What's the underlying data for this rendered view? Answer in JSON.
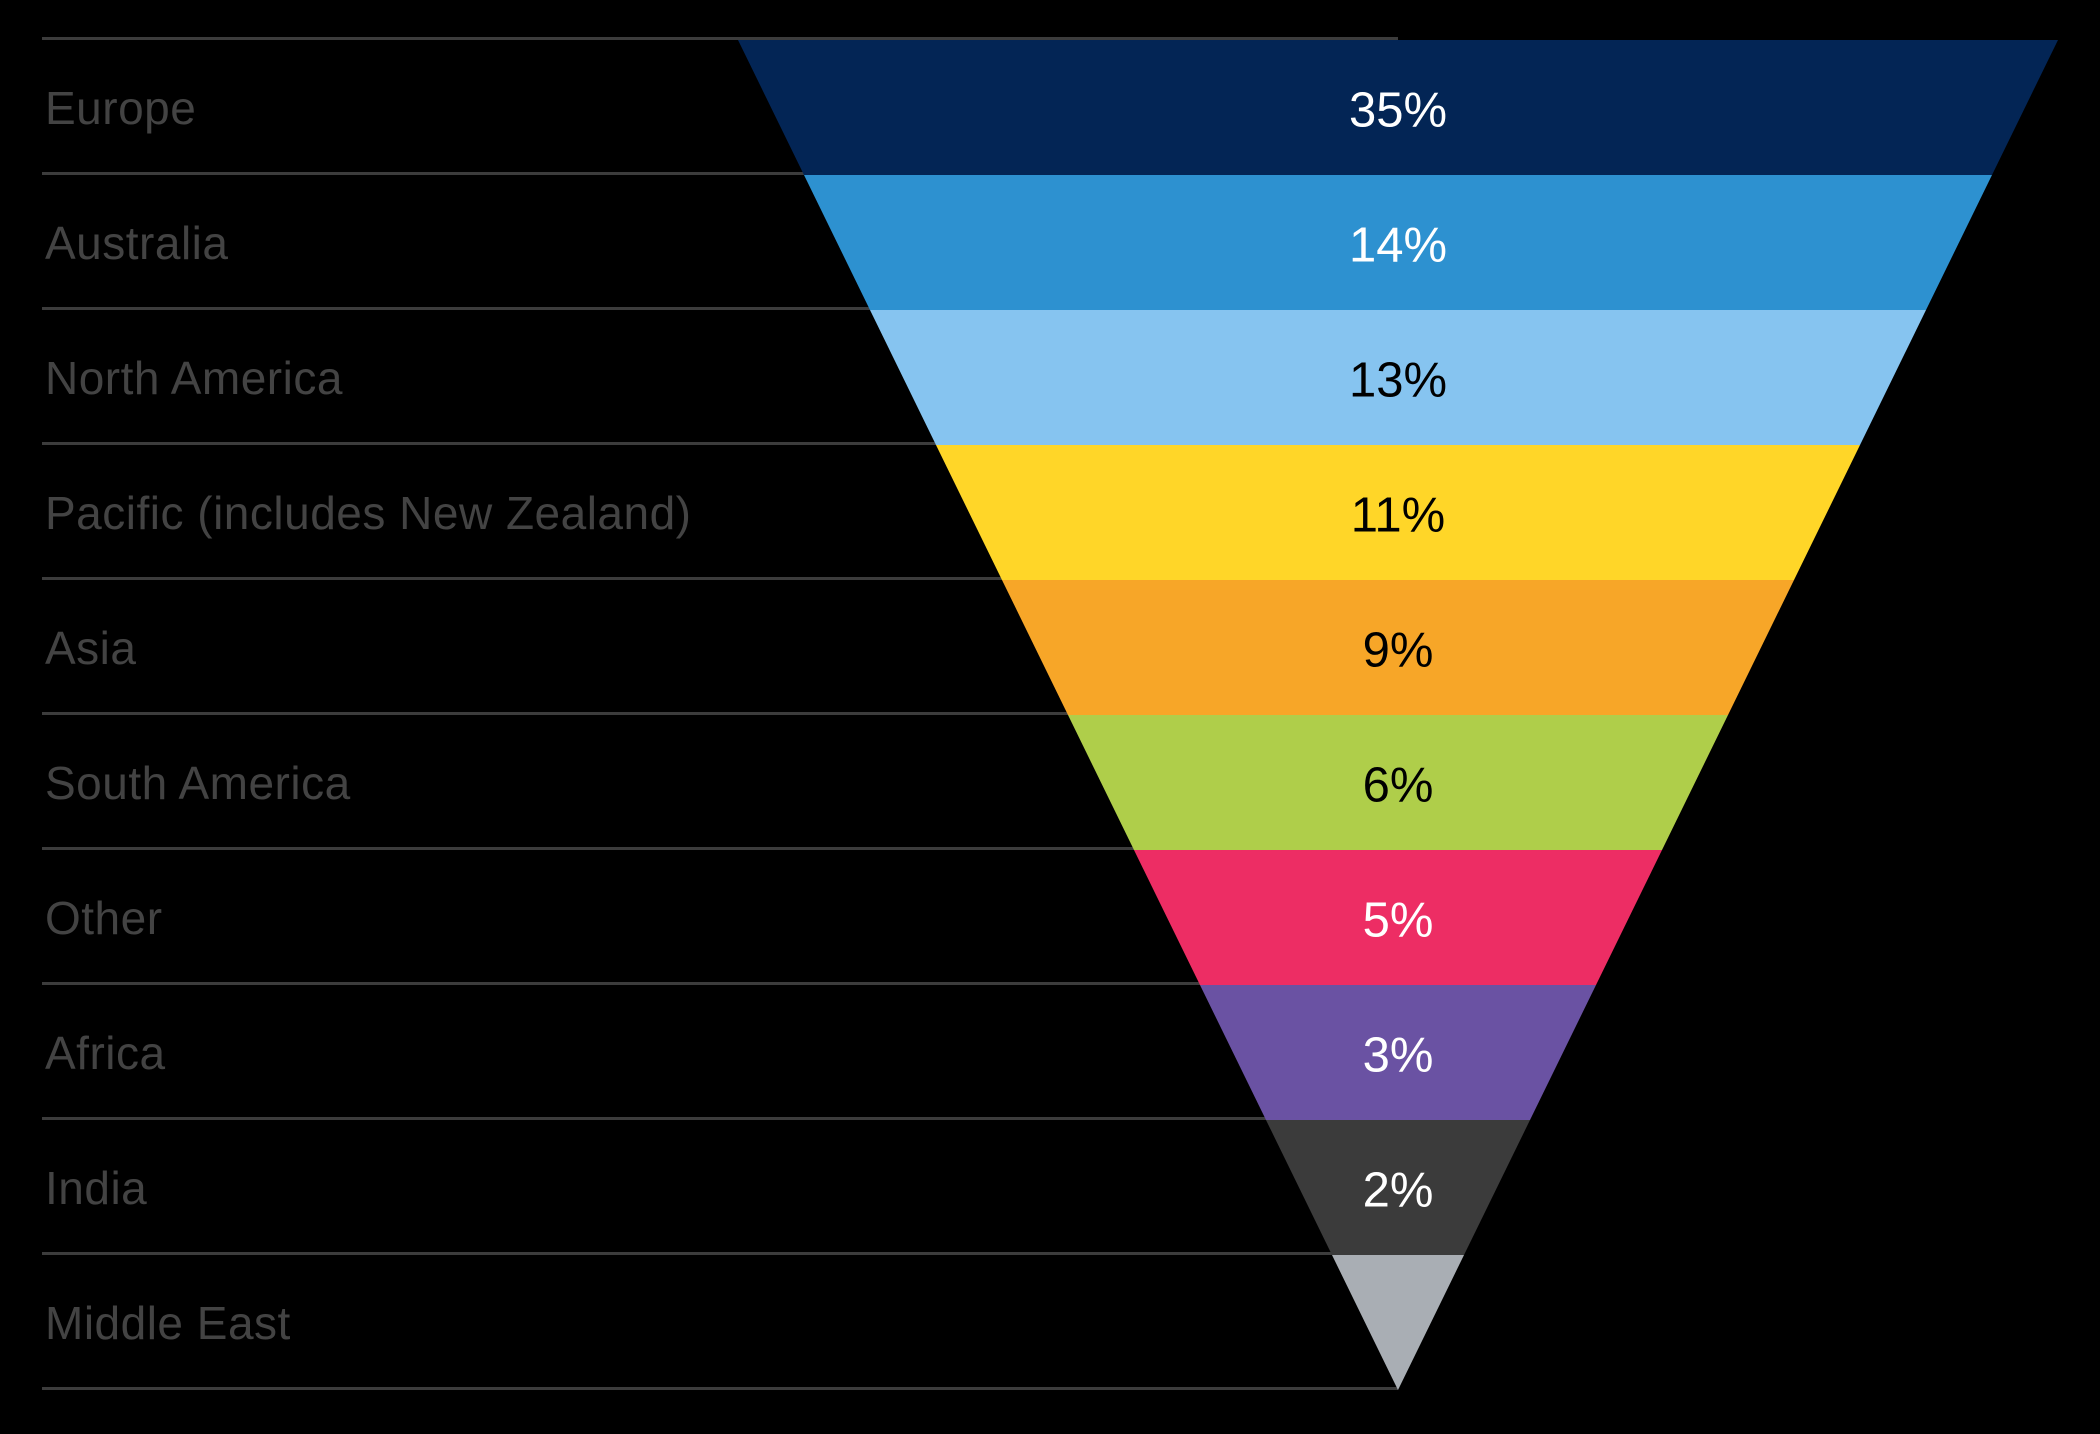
{
  "chart_data": {
    "type": "funnel",
    "shape": "inverted-pyramid",
    "title": "",
    "categories": [
      "Europe",
      "Australia",
      "North America",
      "Pacific (includes New Zealand)",
      "Asia",
      "South America",
      "Other",
      "Africa",
      "India",
      "Middle East"
    ],
    "values": [
      35,
      14,
      13,
      11,
      9,
      6,
      5,
      3,
      2,
      null
    ],
    "value_labels": [
      "35%",
      "14%",
      "13%",
      "11%",
      "9%",
      "6%",
      "5%",
      "3%",
      "2%",
      ""
    ],
    "segment_colors": [
      "#032555",
      "#2D91D0",
      "#86C4F0",
      "#FFD628",
      "#F7A628",
      "#AFCE4A",
      "#ED2D64",
      "#6A52A3",
      "#3B3B3B",
      "#A9AEB4"
    ],
    "value_label_colors": [
      "#FFFFFF",
      "#FFFFFF",
      "#000000",
      "#000000",
      "#000000",
      "#000000",
      "#FFFFFF",
      "#FFFFFF",
      "#FFFFFF",
      ""
    ],
    "layout_hints": {
      "equal_band_heights": true,
      "category_labels_position": "left",
      "value_labels_position": "center-of-band",
      "gridlines": "horizontal-row-separators",
      "legend": "none"
    },
    "colors": {
      "background": "#000000",
      "separator_line": "#3C3C3C",
      "category_label_text": "#434343"
    }
  }
}
